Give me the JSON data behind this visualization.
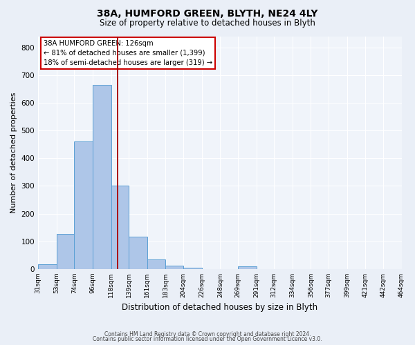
{
  "title1": "38A, HUMFORD GREEN, BLYTH, NE24 4LY",
  "title2": "Size of property relative to detached houses in Blyth",
  "xlabel": "Distribution of detached houses by size in Blyth",
  "ylabel": "Number of detached properties",
  "bin_edges": [
    31,
    53,
    74,
    96,
    118,
    139,
    161,
    183,
    204,
    226,
    248,
    269,
    291,
    312,
    334,
    356,
    377,
    399,
    421,
    442,
    464
  ],
  "bar_heights": [
    18,
    127,
    460,
    665,
    300,
    117,
    35,
    13,
    5,
    0,
    0,
    9,
    0,
    0,
    0,
    0,
    0,
    0,
    0,
    0
  ],
  "bar_color": "#aec6e8",
  "bar_edge_color": "#5a9fd4",
  "property_line_x": 126,
  "property_line_color": "#aa0000",
  "annotation_title": "38A HUMFORD GREEN: 126sqm",
  "annotation_line1": "← 81% of detached houses are smaller (1,399)",
  "annotation_line2": "18% of semi-detached houses are larger (319) →",
  "annotation_box_color": "#cc0000",
  "ylim": [
    0,
    840
  ],
  "yticks": [
    0,
    100,
    200,
    300,
    400,
    500,
    600,
    700,
    800
  ],
  "footer1": "Contains HM Land Registry data © Crown copyright and database right 2024.",
  "footer2": "Contains public sector information licensed under the Open Government Licence v3.0.",
  "bg_color": "#eaeff7",
  "plot_bg_color": "#f0f4fa",
  "grid_color": "#ffffff",
  "title1_fontsize": 10,
  "title2_fontsize": 8.5,
  "ylabel_fontsize": 8,
  "xlabel_fontsize": 8.5,
  "tick_fontsize": 6.5,
  "footer_fontsize": 5.5,
  "annot_fontsize": 7.2
}
